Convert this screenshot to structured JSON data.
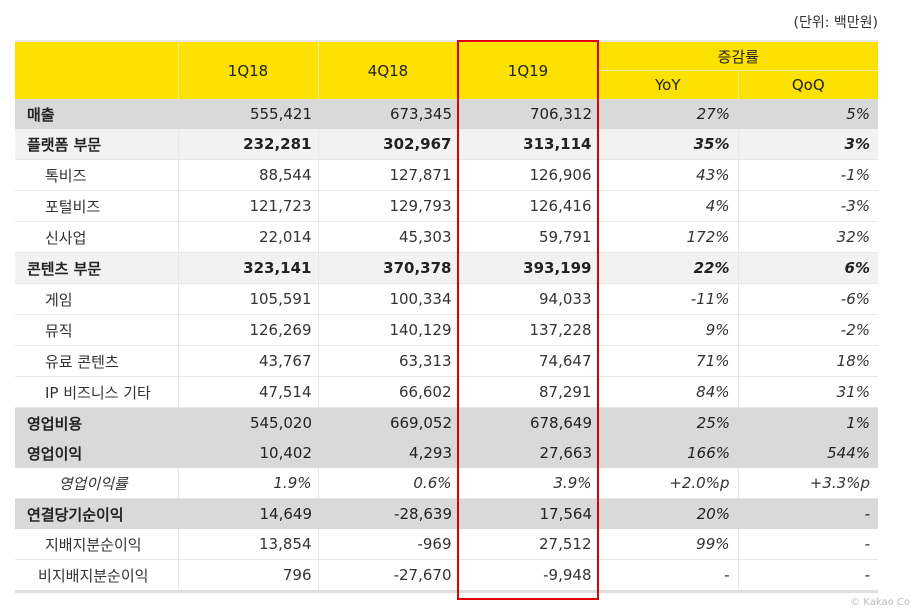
{
  "unit_label": "(단위: 백만원)",
  "colors": {
    "header_bg": "#fde100",
    "highlight_border": "#e00000",
    "level1_bg": "#d9d9d9",
    "level2_bg": "#f2f2f2"
  },
  "header": {
    "label_col": "",
    "periods": [
      "1Q18",
      "4Q18",
      "1Q19"
    ],
    "change_group": "증감률",
    "change_cols": [
      "YoY",
      "QoQ"
    ]
  },
  "highlighted_column": "1Q19",
  "rows": [
    {
      "label": "매출",
      "level": 1,
      "q1_18": "555,421",
      "q4_18": "673,345",
      "q1_19": "706,312",
      "yoy": "27%",
      "qoq": "5%"
    },
    {
      "label": "플랫폼 부문",
      "level": 2,
      "q1_18": "232,281",
      "q4_18": "302,967",
      "q1_19": "313,114",
      "yoy": "35%",
      "qoq": "3%"
    },
    {
      "label": "톡비즈",
      "level": 3,
      "q1_18": "88,544",
      "q4_18": "127,871",
      "q1_19": "126,906",
      "yoy": "43%",
      "qoq": "-1%"
    },
    {
      "label": "포털비즈",
      "level": 3,
      "q1_18": "121,723",
      "q4_18": "129,793",
      "q1_19": "126,416",
      "yoy": "4%",
      "qoq": "-3%"
    },
    {
      "label": "신사업",
      "level": 3,
      "q1_18": "22,014",
      "q4_18": "45,303",
      "q1_19": "59,791",
      "yoy": "172%",
      "qoq": "32%"
    },
    {
      "label": "콘텐츠 부문",
      "level": 2,
      "q1_18": "323,141",
      "q4_18": "370,378",
      "q1_19": "393,199",
      "yoy": "22%",
      "qoq": "6%"
    },
    {
      "label": "게임",
      "level": 3,
      "q1_18": "105,591",
      "q4_18": "100,334",
      "q1_19": "94,033",
      "yoy": "-11%",
      "qoq": "-6%"
    },
    {
      "label": "뮤직",
      "level": 3,
      "q1_18": "126,269",
      "q4_18": "140,129",
      "q1_19": "137,228",
      "yoy": "9%",
      "qoq": "-2%"
    },
    {
      "label": "유료 콘텐츠",
      "level": 3,
      "q1_18": "43,767",
      "q4_18": "63,313",
      "q1_19": "74,647",
      "yoy": "71%",
      "qoq": "18%"
    },
    {
      "label": "IP 비즈니스 기타",
      "level": 3,
      "q1_18": "47,514",
      "q4_18": "66,602",
      "q1_19": "87,291",
      "yoy": "84%",
      "qoq": "31%"
    },
    {
      "label": "영업비용",
      "level": 1,
      "q1_18": "545,020",
      "q4_18": "669,052",
      "q1_19": "678,649",
      "yoy": "25%",
      "qoq": "1%"
    },
    {
      "label": "영업이익",
      "level": 1,
      "q1_18": "10,402",
      "q4_18": "4,293",
      "q1_19": "27,663",
      "yoy": "166%",
      "qoq": "544%"
    },
    {
      "label": "영업이익률",
      "level": "margin",
      "q1_18": "1.9%",
      "q4_18": "0.6%",
      "q1_19": "3.9%",
      "yoy": "+2.0%p",
      "qoq": "+3.3%p"
    },
    {
      "label": "연결당기순이익",
      "level": 1,
      "q1_18": "14,649",
      "q4_18": "-28,639",
      "q1_19": "17,564",
      "yoy": "20%",
      "qoq": "-"
    },
    {
      "label": "지배지분순이익",
      "level": "sub-center",
      "q1_18": "13,854",
      "q4_18": "-969",
      "q1_19": "27,512",
      "yoy": "99%",
      "qoq": "-"
    },
    {
      "label": "비지배지분순이익",
      "level": "sub-center",
      "q1_18": "796",
      "q4_18": "-27,670",
      "q1_19": "-9,948",
      "yoy": "-",
      "qoq": "-"
    }
  ],
  "copyright": "© Kakao Co"
}
